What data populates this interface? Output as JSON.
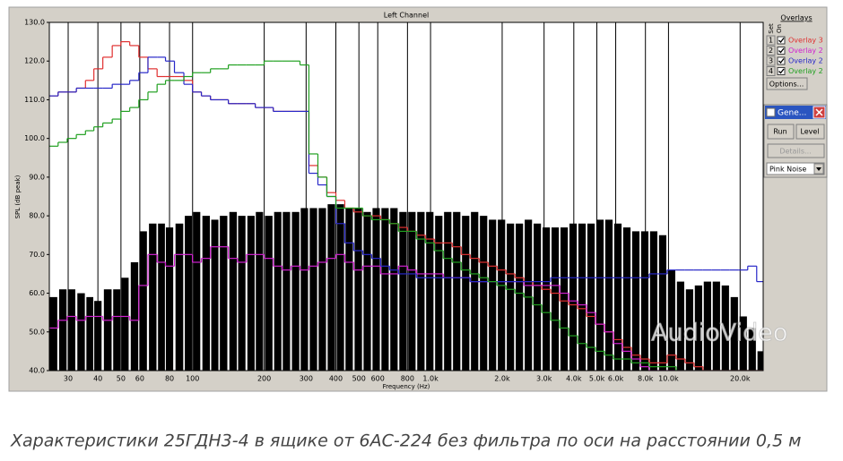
{
  "chart_data": {
    "type": "bar",
    "title": "Left Channel",
    "x_label": "Frequency (Hz)",
    "y_label": "SPL (dB peak)",
    "x_scale": "log",
    "xlim": [
      25,
      25000
    ],
    "ylim": [
      40,
      130
    ],
    "grid": true,
    "xticks": [
      30,
      40,
      50,
      60,
      80,
      100,
      200,
      300,
      400,
      500,
      600,
      800,
      {
        "value": 1000,
        "label": "1.0k"
      },
      {
        "value": 2000,
        "label": "2.0k"
      },
      {
        "value": 3000,
        "label": "3.0k"
      },
      {
        "value": 4000,
        "label": "4.0k"
      },
      {
        "value": 5000,
        "label": "5.0k"
      },
      {
        "value": 6000,
        "label": "6.0k"
      },
      {
        "value": 8000,
        "label": "8.0k"
      },
      {
        "value": 10000,
        "label": "10.0k"
      },
      {
        "value": 20000,
        "label": "20.0k"
      }
    ],
    "yticks": [
      {
        "value": 40,
        "label": "40.0"
      },
      {
        "value": 50,
        "label": "50.0"
      },
      {
        "value": 60,
        "label": "60.0"
      },
      {
        "value": 70,
        "label": "70.0"
      },
      {
        "value": 80,
        "label": "80.0"
      },
      {
        "value": 90,
        "label": "90.0"
      },
      {
        "value": 100,
        "label": "100.0"
      },
      {
        "value": 110,
        "label": "110.0"
      },
      {
        "value": 120,
        "label": "120.0"
      },
      {
        "value": 130,
        "label": "130.0"
      }
    ],
    "x": [
      26,
      28.5,
      31,
      34,
      37,
      40,
      44,
      48,
      52,
      57,
      62,
      68,
      74,
      80,
      88,
      96,
      104,
      114,
      124,
      135,
      148,
      161,
      176,
      191,
      209,
      228,
      248,
      271,
      295,
      322,
      351,
      383,
      418,
      455,
      497,
      542,
      591,
      644,
      702,
      766,
      835,
      911,
      993,
      1083,
      1181,
      1288,
      1405,
      1532,
      1671,
      1822,
      1987,
      2167,
      2363,
      2577,
      2810,
      3064,
      3341,
      3644,
      3974,
      4333,
      4726,
      5153,
      5620,
      6129,
      6683,
      7288,
      7948,
      8667,
      9452,
      10307,
      11240,
      12258,
      13367,
      14577,
      15897,
      17336,
      18905,
      20616,
      22483,
      24518
    ],
    "bars": {
      "color": "#000000",
      "values": [
        59,
        61,
        61,
        60,
        59,
        58,
        61,
        61,
        64,
        68,
        76,
        78,
        78,
        77,
        78,
        80,
        81,
        80,
        79,
        80,
        81,
        80,
        80,
        81,
        80,
        81,
        81,
        81,
        82,
        82,
        82,
        83,
        83,
        82,
        82,
        81,
        82,
        82,
        82,
        81,
        81,
        81,
        81,
        80,
        81,
        81,
        80,
        81,
        80,
        79,
        79,
        78,
        78,
        79,
        78,
        77,
        77,
        77,
        78,
        78,
        78,
        79,
        79,
        78,
        77,
        76,
        76,
        76,
        75,
        66,
        63,
        61,
        62,
        63,
        63,
        62,
        59,
        54,
        51,
        45
      ]
    },
    "series": [
      {
        "name": "Overlay 3",
        "color": "#e03030",
        "values": [
          111,
          112,
          112,
          113,
          115,
          118,
          121,
          124,
          125,
          124,
          121,
          118,
          116,
          116,
          116,
          115,
          112,
          111,
          110,
          110,
          109,
          109,
          109,
          108,
          108,
          107,
          107,
          107,
          107,
          93,
          90,
          86,
          84,
          82,
          81,
          80,
          80,
          79,
          78,
          77,
          76,
          75,
          74,
          73,
          73,
          72,
          70,
          69,
          68,
          67,
          66,
          65,
          64,
          63,
          62,
          61,
          60,
          58,
          57,
          56,
          54,
          52,
          50,
          48,
          46,
          44,
          43,
          42,
          42,
          44,
          43,
          42,
          41,
          40,
          40,
          40,
          40,
          40,
          40,
          40
        ]
      },
      {
        "name": "Overlay 2",
        "color": "#d020d0",
        "values": [
          51,
          53,
          54,
          53,
          54,
          54,
          53,
          54,
          54,
          53,
          62,
          70,
          68,
          67,
          70,
          70,
          68,
          69,
          72,
          72,
          69,
          68,
          70,
          70,
          69,
          67,
          66,
          67,
          66,
          67,
          68,
          69,
          70,
          68,
          66,
          67,
          67,
          65,
          65,
          67,
          66,
          65,
          65,
          65,
          64,
          64,
          64,
          63,
          63,
          63,
          63,
          63,
          63,
          62,
          62,
          62,
          62,
          60,
          58,
          57,
          55,
          52,
          50,
          47,
          45,
          43,
          41,
          40,
          40,
          40,
          40,
          40,
          40,
          40,
          40,
          40,
          40,
          40,
          40,
          40
        ]
      },
      {
        "name": "Overlay 2",
        "color": "#2828c8",
        "values": [
          111,
          112,
          112,
          113,
          113,
          113,
          113,
          114,
          114,
          115,
          117,
          121,
          121,
          120,
          117,
          114,
          112,
          111,
          110,
          110,
          109,
          109,
          109,
          108,
          108,
          107,
          107,
          107,
          107,
          91,
          88,
          85,
          78,
          73,
          71,
          70,
          69,
          67,
          66,
          65,
          65,
          64,
          64,
          64,
          64,
          64,
          64,
          63,
          63,
          63,
          63,
          63,
          63,
          63,
          63,
          63,
          64,
          64,
          64,
          64,
          64,
          64,
          64,
          64,
          64,
          64,
          64,
          65,
          65,
          66,
          66,
          66,
          66,
          66,
          66,
          66,
          66,
          66,
          67,
          63
        ]
      },
      {
        "name": "Overlay 2",
        "color": "#20a020",
        "values": [
          98,
          99,
          100,
          101,
          102,
          103,
          104,
          105,
          107,
          108,
          110,
          112,
          114,
          115,
          115,
          116,
          117,
          117,
          118,
          118,
          119,
          119,
          119,
          119,
          120,
          120,
          120,
          120,
          119,
          96,
          90,
          85,
          82,
          82,
          82,
          80,
          79,
          79,
          78,
          76,
          76,
          74,
          73,
          71,
          69,
          68,
          66,
          65,
          64,
          63,
          62,
          61,
          60,
          59,
          57,
          55,
          53,
          51,
          49,
          47,
          46,
          45,
          44,
          43,
          43,
          42,
          42,
          41,
          41,
          41,
          40,
          40,
          40,
          40,
          40,
          40,
          40,
          40,
          40,
          40
        ]
      }
    ]
  },
  "sidebar": {
    "title": "Overlays",
    "set_label": "Set",
    "on_label": "On",
    "set_numbers": [
      "1",
      "2",
      "3",
      "4"
    ],
    "options_button": "Options...",
    "generator": {
      "title": "Gene...",
      "run": "Run",
      "level": "Level",
      "details": "Details...",
      "signal": "Pink Noise"
    }
  },
  "watermark": "AudioVideo",
  "caption": "Характеристики 25ГДН3-4 в ящике от 6АС-224 без фильтра по оси на расстоянии 0,5 м"
}
